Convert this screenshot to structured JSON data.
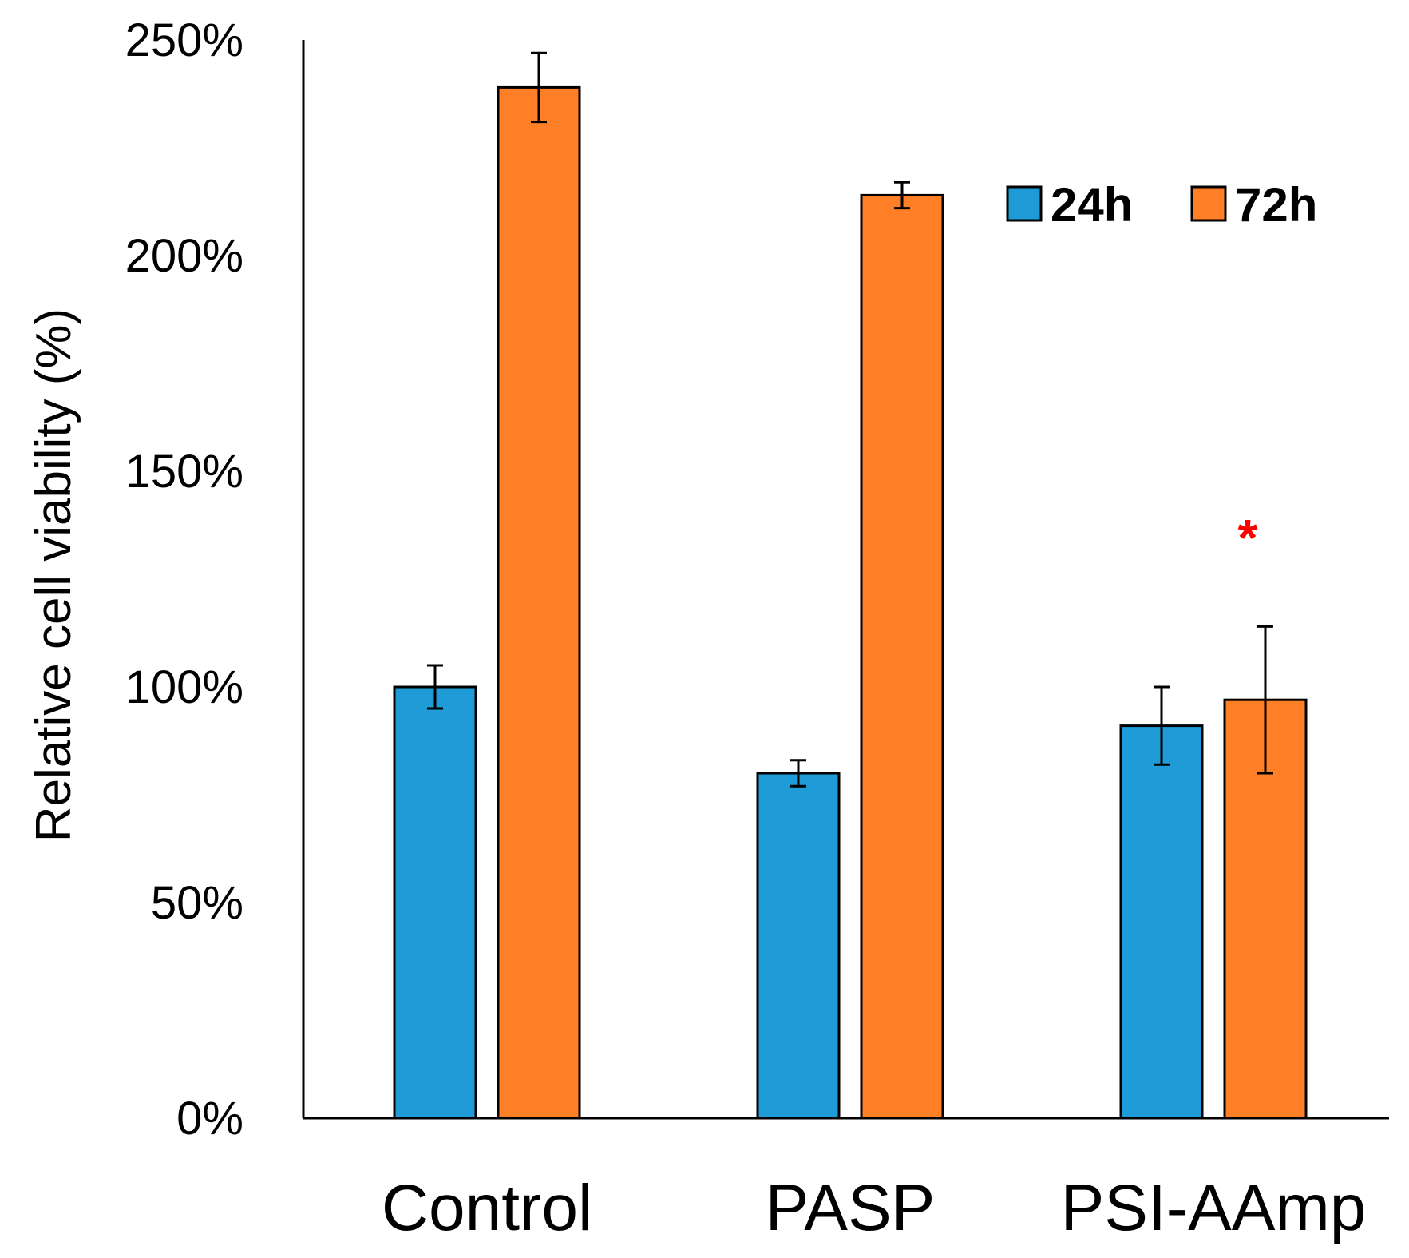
{
  "chart_data": {
    "type": "bar",
    "title": "",
    "xlabel": "",
    "ylabel": "Relative cell viability (%)",
    "ylim": [
      0,
      250
    ],
    "yticks": [
      0,
      50,
      100,
      150,
      200,
      250
    ],
    "ytick_labels": [
      "0%",
      "50%",
      "100%",
      "150%",
      "200%",
      "250%"
    ],
    "categories": [
      "Control",
      "PASP",
      "PSI-AAmp"
    ],
    "series": [
      {
        "name": "24h",
        "color": "#1f9bd7",
        "values": [
          100,
          80,
          91
        ],
        "errors": [
          5,
          3,
          9
        ]
      },
      {
        "name": "72h",
        "color": "#ff7f27",
        "values": [
          239,
          214,
          97
        ],
        "errors": [
          8,
          3,
          17
        ]
      }
    ],
    "legend": {
      "position": "top-right",
      "entries": [
        "24h",
        "72h"
      ]
    },
    "annotations": [
      {
        "text": "*",
        "category": "PSI-AAmp",
        "series": "72h",
        "value": 138,
        "color": "#ff0000"
      }
    ],
    "grid": false
  }
}
